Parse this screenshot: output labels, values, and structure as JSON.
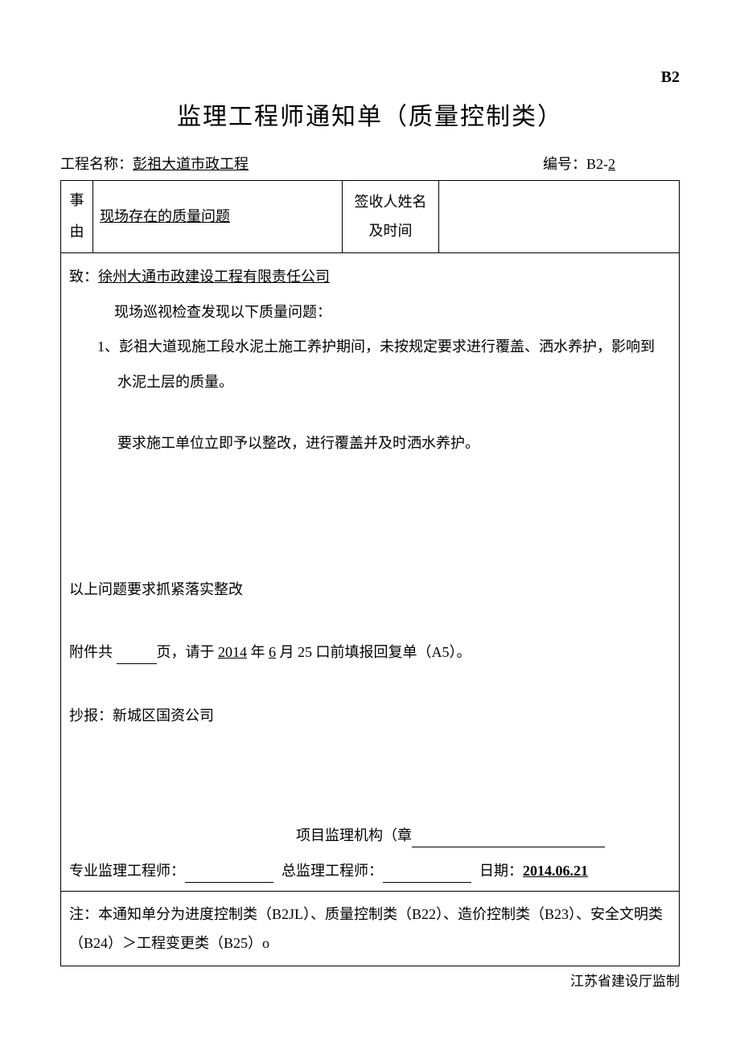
{
  "form_code": "B2",
  "title": "监理工程师通知单（质量控制类）",
  "header": {
    "project_label": "工程名称：",
    "project_name": "彭祖大道市政工程",
    "number_label": "编号：B2-",
    "number_value": "2"
  },
  "reason_row": {
    "reason_label_1": "事",
    "reason_label_2": "由",
    "reason_text": "现场存在的质量问题",
    "receiver_label_1": "签收人姓名",
    "receiver_label_2": "及时间"
  },
  "body": {
    "addressee_label": "致：",
    "addressee": "徐州大通市政建设工程有限责任公司",
    "intro": "现场巡视检查发现以下质量问题：",
    "issue_num": "1、",
    "issue_1_line1": "彭祖大道现施工段水泥土施工养护期间，未按规定要求进行覆盖、洒水养护，影响到",
    "issue_1_line2": "水泥土层的质量。",
    "requirement": "要求施工单位立即予以整改，进行覆盖并及时洒水养护。",
    "conclusion": "以上问题要求抓紧落实整改",
    "attachment_prefix": "附件共 ",
    "attachment_mid1": "页，请于 ",
    "attachment_year": "2014",
    "attachment_mid2": " 年 ",
    "attachment_month": "6",
    "attachment_mid3": " 月 25 口前填报回复单（A5）。",
    "cc_label": "抄报：",
    "cc": "新城区国资公司",
    "org_label": "项目监理机构（章",
    "sign1_label": "专业监理工程师：",
    "sign2_label": "总监理工程师：",
    "date_label": "日期：",
    "date_value": "2014.06.21"
  },
  "note": "注：本通知单分为进度控制类（B2JL）、质量控制类（B22）、造价控制类（B23）、安全文明类（B24）＞工程变更类（B25）o",
  "footer": "江苏省建设厅监制"
}
